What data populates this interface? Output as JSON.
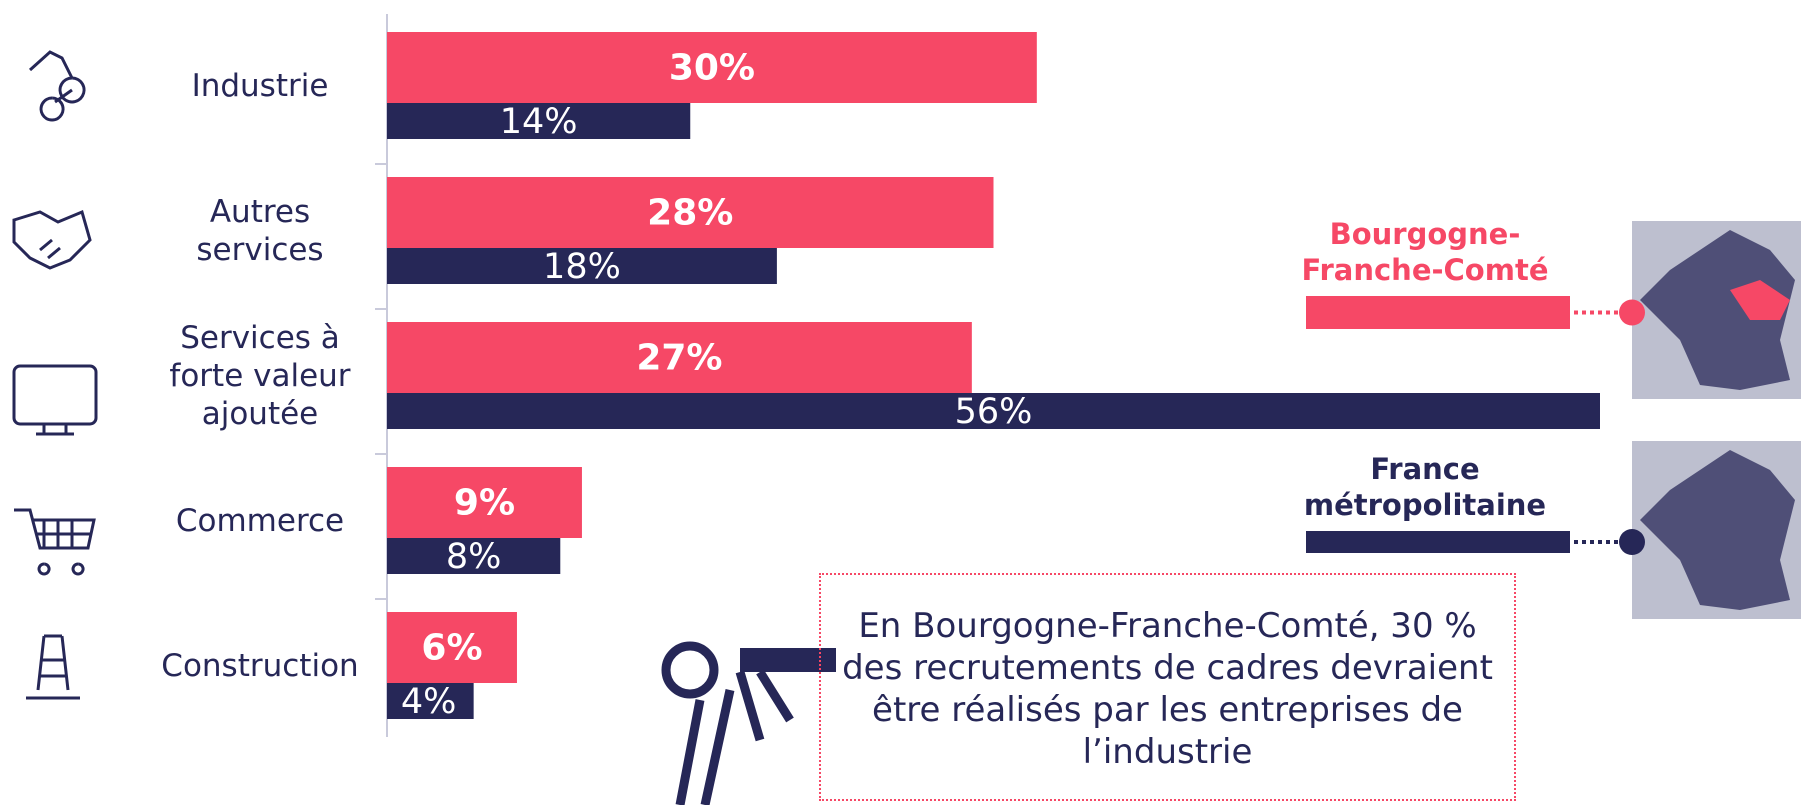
{
  "chart_data": {
    "type": "bar",
    "orientation": "horizontal",
    "categories": [
      "Industrie",
      "Autres services",
      "Services à forte valeur ajoutée",
      "Commerce",
      "Construction"
    ],
    "series": [
      {
        "name": "Bourgogne-Franche-Comté",
        "color": "#f64866",
        "values": [
          30,
          28,
          27,
          9,
          6
        ],
        "value_labels": [
          "30%",
          "28%",
          "27%",
          "9%",
          "6%"
        ]
      },
      {
        "name": "France métropolitaine",
        "color": "#262757",
        "values": [
          14,
          18,
          56,
          8,
          4
        ],
        "value_labels": [
          "14%",
          "18%",
          "56%",
          "8%",
          "4%"
        ]
      }
    ],
    "annotation": "En Bourgogne-Franche-Comté, 30 % des recrutements de cadres devraient être réalisés par les entreprises de l’industrie"
  }
}
